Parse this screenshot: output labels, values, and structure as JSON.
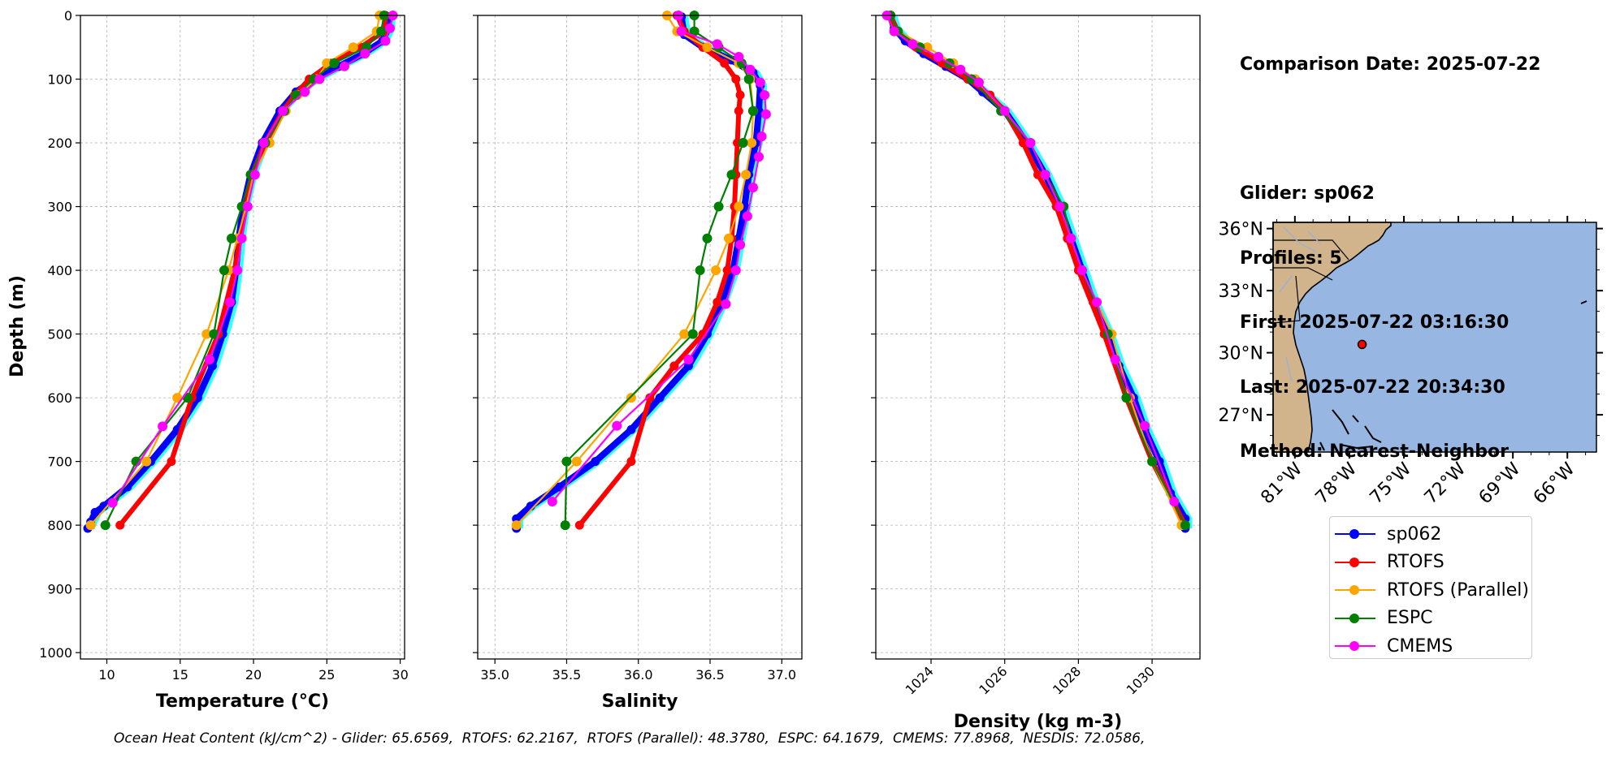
{
  "info": {
    "comparison_date": "Comparison Date: 2025-07-22",
    "glider": "Glider: sp062",
    "profiles": "Profiles: 5",
    "first": "First: 2025-07-22 03:16:30",
    "last": "Last: 2025-07-22 20:34:30",
    "method": "Method: Nearest-Neighbor"
  },
  "legend": [
    {
      "label": "sp062",
      "color": "#0000ff"
    },
    {
      "label": "RTOFS",
      "color": "#ff0000"
    },
    {
      "label": "RTOFS (Parallel)",
      "color": "#ffa500"
    },
    {
      "label": "ESPC",
      "color": "#008000"
    },
    {
      "label": "CMEMS",
      "color": "#ff00ff"
    }
  ],
  "footnote": "Ocean Heat Content (kJ/cm^2) - Glider: 65.6569,  RTOFS: 62.2167,  RTOFS (Parallel): 48.3780,  ESPC: 64.1679,  CMEMS: 77.8968,  NESDIS: 72.0586,",
  "map": {
    "lat_labels": [
      "36°N",
      "33°N",
      "30°N",
      "27°N"
    ],
    "lon_labels": [
      "81°W",
      "78°W",
      "75°W",
      "72°W",
      "69°W",
      "66°W"
    ],
    "land_color": "#d2b48c",
    "ocean_color": "#97b6e1",
    "glider_position": {
      "lon": -77.3,
      "lat": 30.4
    }
  },
  "chart_data": [
    {
      "type": "line",
      "xlabel": "Temperature (°C)",
      "ylabel": "Depth (m)",
      "xlim": [
        8.2,
        30.3
      ],
      "ylim": [
        1010,
        0
      ],
      "xticks": [
        10,
        15,
        20,
        25,
        30
      ],
      "yticks": [
        0,
        100,
        200,
        300,
        400,
        500,
        600,
        700,
        800,
        900,
        1000
      ],
      "series": [
        {
          "name": "sp062",
          "color": "#0000ff",
          "depth": [
            2,
            20,
            40,
            60,
            80,
            100,
            120,
            150,
            200,
            250,
            300,
            350,
            400,
            450,
            500,
            550,
            600,
            650,
            700,
            740,
            770,
            780,
            795,
            805
          ],
          "values": [
            29.2,
            29.2,
            28.8,
            27.5,
            25.8,
            24.2,
            22.9,
            21.8,
            20.6,
            19.8,
            19.3,
            19.0,
            18.8,
            18.5,
            17.9,
            17.2,
            16.2,
            14.8,
            13.0,
            11.4,
            9.8,
            9.2,
            8.9,
            8.7
          ]
        },
        {
          "name": "RTOFS",
          "color": "#ff0000",
          "depth": [
            0,
            25,
            50,
            75,
            100,
            125,
            150,
            200,
            250,
            300,
            350,
            400,
            500,
            600,
            700,
            800
          ],
          "values": [
            29.0,
            28.9,
            27.3,
            25.3,
            23.8,
            22.8,
            22.0,
            20.8,
            19.9,
            19.5,
            19.1,
            18.7,
            17.6,
            15.8,
            14.4,
            10.9
          ]
        },
        {
          "name": "RTOFS (Parallel)",
          "color": "#ffa500",
          "depth": [
            0,
            25,
            50,
            75,
            100,
            125,
            150,
            200,
            250,
            300,
            350,
            400,
            500,
            600,
            700,
            800
          ],
          "values": [
            28.6,
            28.4,
            26.8,
            25.0,
            24.3,
            23.0,
            22.2,
            21.1,
            20.0,
            19.5,
            18.9,
            18.3,
            16.8,
            14.8,
            12.7,
            8.9
          ]
        },
        {
          "name": "ESPC",
          "color": "#008000",
          "depth": [
            0,
            25,
            50,
            75,
            100,
            125,
            150,
            200,
            250,
            300,
            350,
            400,
            500,
            600,
            700,
            800
          ],
          "values": [
            28.9,
            28.7,
            27.7,
            25.5,
            24.1,
            22.9,
            22.1,
            20.8,
            19.8,
            19.2,
            18.5,
            18.0,
            17.3,
            15.5,
            12.0,
            9.9
          ]
        },
        {
          "name": "CMEMS",
          "color": "#ff00ff",
          "depth": [
            0,
            20,
            40,
            60,
            80,
            100,
            120,
            150,
            200,
            250,
            300,
            350,
            400,
            450,
            540,
            645,
            765
          ],
          "values": [
            29.5,
            29.3,
            29.0,
            27.6,
            26.2,
            24.5,
            23.5,
            22.0,
            20.7,
            20.1,
            19.6,
            19.2,
            18.9,
            18.4,
            17.0,
            13.8,
            10.4
          ]
        }
      ]
    },
    {
      "type": "line",
      "xlabel": "Salinity",
      "ylabel": "",
      "xlim": [
        34.88,
        37.14
      ],
      "ylim": [
        1010,
        0
      ],
      "xticks": [
        35.0,
        35.5,
        36.0,
        36.5,
        37.0
      ],
      "series": [
        {
          "name": "sp062",
          "color": "#0000ff",
          "depth": [
            2,
            30,
            50,
            70,
            90,
            110,
            150,
            200,
            250,
            300,
            350,
            400,
            450,
            500,
            550,
            600,
            650,
            700,
            740,
            770,
            790,
            805
          ],
          "values": [
            36.3,
            36.32,
            36.45,
            36.65,
            36.8,
            36.85,
            36.84,
            36.82,
            36.77,
            36.74,
            36.7,
            36.66,
            36.58,
            36.48,
            36.35,
            36.15,
            35.95,
            35.7,
            35.45,
            35.25,
            35.15,
            35.15
          ]
        },
        {
          "name": "RTOFS",
          "color": "#ff0000",
          "depth": [
            0,
            25,
            50,
            75,
            100,
            125,
            150,
            200,
            250,
            300,
            350,
            400,
            450,
            500,
            550,
            600,
            700,
            800
          ],
          "values": [
            36.27,
            36.32,
            36.45,
            36.6,
            36.68,
            36.71,
            36.7,
            36.69,
            36.68,
            36.67,
            36.65,
            36.62,
            36.55,
            36.45,
            36.25,
            36.08,
            35.95,
            35.59
          ]
        },
        {
          "name": "RTOFS (Parallel)",
          "color": "#ffa500",
          "depth": [
            0,
            25,
            50,
            75,
            100,
            150,
            200,
            250,
            300,
            350,
            400,
            500,
            600,
            700,
            800
          ],
          "values": [
            36.2,
            36.27,
            36.48,
            36.7,
            36.78,
            36.8,
            36.79,
            36.75,
            36.7,
            36.63,
            36.54,
            36.32,
            35.95,
            35.57,
            35.15
          ]
        },
        {
          "name": "ESPC",
          "color": "#008000",
          "depth": [
            0,
            25,
            50,
            75,
            100,
            150,
            200,
            250,
            300,
            350,
            400,
            500,
            700,
            800
          ],
          "values": [
            36.39,
            36.39,
            36.56,
            36.72,
            36.77,
            36.8,
            36.73,
            36.65,
            36.56,
            36.48,
            36.43,
            36.38,
            35.5,
            35.49
          ]
        },
        {
          "name": "CMEMS",
          "color": "#ff00ff",
          "depth": [
            0,
            25,
            45,
            65,
            85,
            105,
            125,
            155,
            190,
            222,
            270,
            315,
            360,
            400,
            453,
            540,
            644,
            763
          ],
          "values": [
            36.28,
            36.3,
            36.55,
            36.7,
            36.78,
            36.85,
            36.88,
            36.89,
            36.86,
            36.84,
            36.8,
            36.76,
            36.71,
            36.68,
            36.61,
            36.35,
            35.85,
            35.4
          ]
        }
      ]
    },
    {
      "type": "line",
      "xlabel": "Density (kg m-3)",
      "ylabel": "",
      "xlim": [
        1022.5,
        1031.3
      ],
      "ylim": [
        1010,
        0
      ],
      "xticks": [
        1024,
        1026,
        1028,
        1030
      ],
      "series": [
        {
          "name": "sp062",
          "color": "#0000ff",
          "depth": [
            2,
            20,
            40,
            60,
            80,
            100,
            120,
            150,
            200,
            250,
            300,
            350,
            400,
            450,
            500,
            550,
            600,
            650,
            700,
            750,
            790,
            805
          ],
          "values": [
            1022.9,
            1023.0,
            1023.3,
            1023.8,
            1024.4,
            1025.0,
            1025.4,
            1026.0,
            1026.6,
            1027.1,
            1027.5,
            1027.8,
            1028.1,
            1028.4,
            1028.8,
            1029.1,
            1029.5,
            1029.8,
            1030.2,
            1030.5,
            1030.9,
            1030.9
          ]
        },
        {
          "name": "RTOFS",
          "color": "#ff0000",
          "depth": [
            0,
            25,
            50,
            75,
            100,
            125,
            150,
            200,
            250,
            300,
            350,
            400,
            500,
            600,
            700,
            800
          ],
          "values": [
            1022.9,
            1023.1,
            1023.6,
            1024.3,
            1025.0,
            1025.6,
            1026.0,
            1026.5,
            1026.9,
            1027.4,
            1027.7,
            1028.0,
            1028.7,
            1029.3,
            1030.0,
            1030.9
          ]
        },
        {
          "name": "RTOFS (Parallel)",
          "color": "#ffa500",
          "depth": [
            0,
            25,
            50,
            75,
            100,
            150,
            200,
            250,
            300,
            350,
            400,
            500,
            600,
            700,
            800
          ],
          "values": [
            1022.9,
            1023.1,
            1023.9,
            1024.6,
            1025.2,
            1026.0,
            1026.7,
            1027.1,
            1027.5,
            1027.8,
            1028.1,
            1028.9,
            1029.4,
            1030.0,
            1030.8
          ]
        },
        {
          "name": "ESPC",
          "color": "#008000",
          "depth": [
            0,
            25,
            50,
            75,
            100,
            150,
            200,
            250,
            300,
            350,
            400,
            500,
            600,
            700,
            800
          ],
          "values": [
            1022.9,
            1023.1,
            1023.7,
            1024.5,
            1025.1,
            1025.9,
            1026.7,
            1027.1,
            1027.6,
            1027.8,
            1028.1,
            1028.8,
            1029.3,
            1030.0,
            1030.9
          ]
        },
        {
          "name": "CMEMS",
          "color": "#ff00ff",
          "depth": [
            0,
            25,
            45,
            65,
            85,
            105,
            150,
            200,
            250,
            300,
            350,
            400,
            450,
            540,
            644,
            763
          ],
          "values": [
            1022.8,
            1023.0,
            1023.5,
            1024.2,
            1024.8,
            1025.3,
            1026.0,
            1026.7,
            1027.1,
            1027.5,
            1027.8,
            1028.1,
            1028.5,
            1029.0,
            1029.8,
            1030.6
          ]
        }
      ]
    }
  ]
}
